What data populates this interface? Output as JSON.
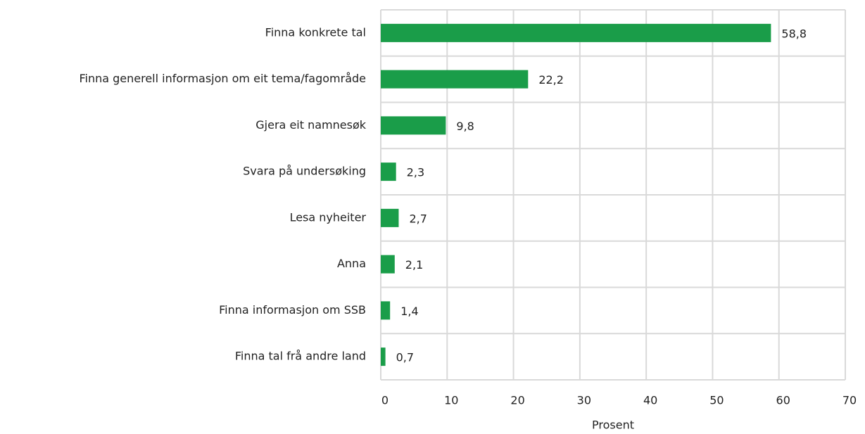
{
  "chart_data": {
    "type": "bar",
    "orientation": "horizontal",
    "categories": [
      "Finna konkrete tal",
      "Finna generell informasjon om eit tema/fagområde",
      "Gjera eit namnesøk",
      "Svara på undersøking",
      "Lesa nyheiter",
      "Anna",
      "Finna informasjon om SSB",
      "Finna tal frå andre land"
    ],
    "values": [
      58.8,
      22.2,
      9.8,
      2.3,
      2.7,
      2.1,
      1.4,
      0.7
    ],
    "value_labels": [
      "58,8",
      "22,2",
      "9,8",
      "2,3",
      "2,7",
      "2,1",
      "1,4",
      "0,7"
    ],
    "color": "#1a9d49",
    "xlabel": "Prosent",
    "xlim": [
      0,
      70
    ],
    "xticks": [
      0,
      10,
      20,
      30,
      40,
      50,
      60,
      70
    ],
    "grid": true
  }
}
